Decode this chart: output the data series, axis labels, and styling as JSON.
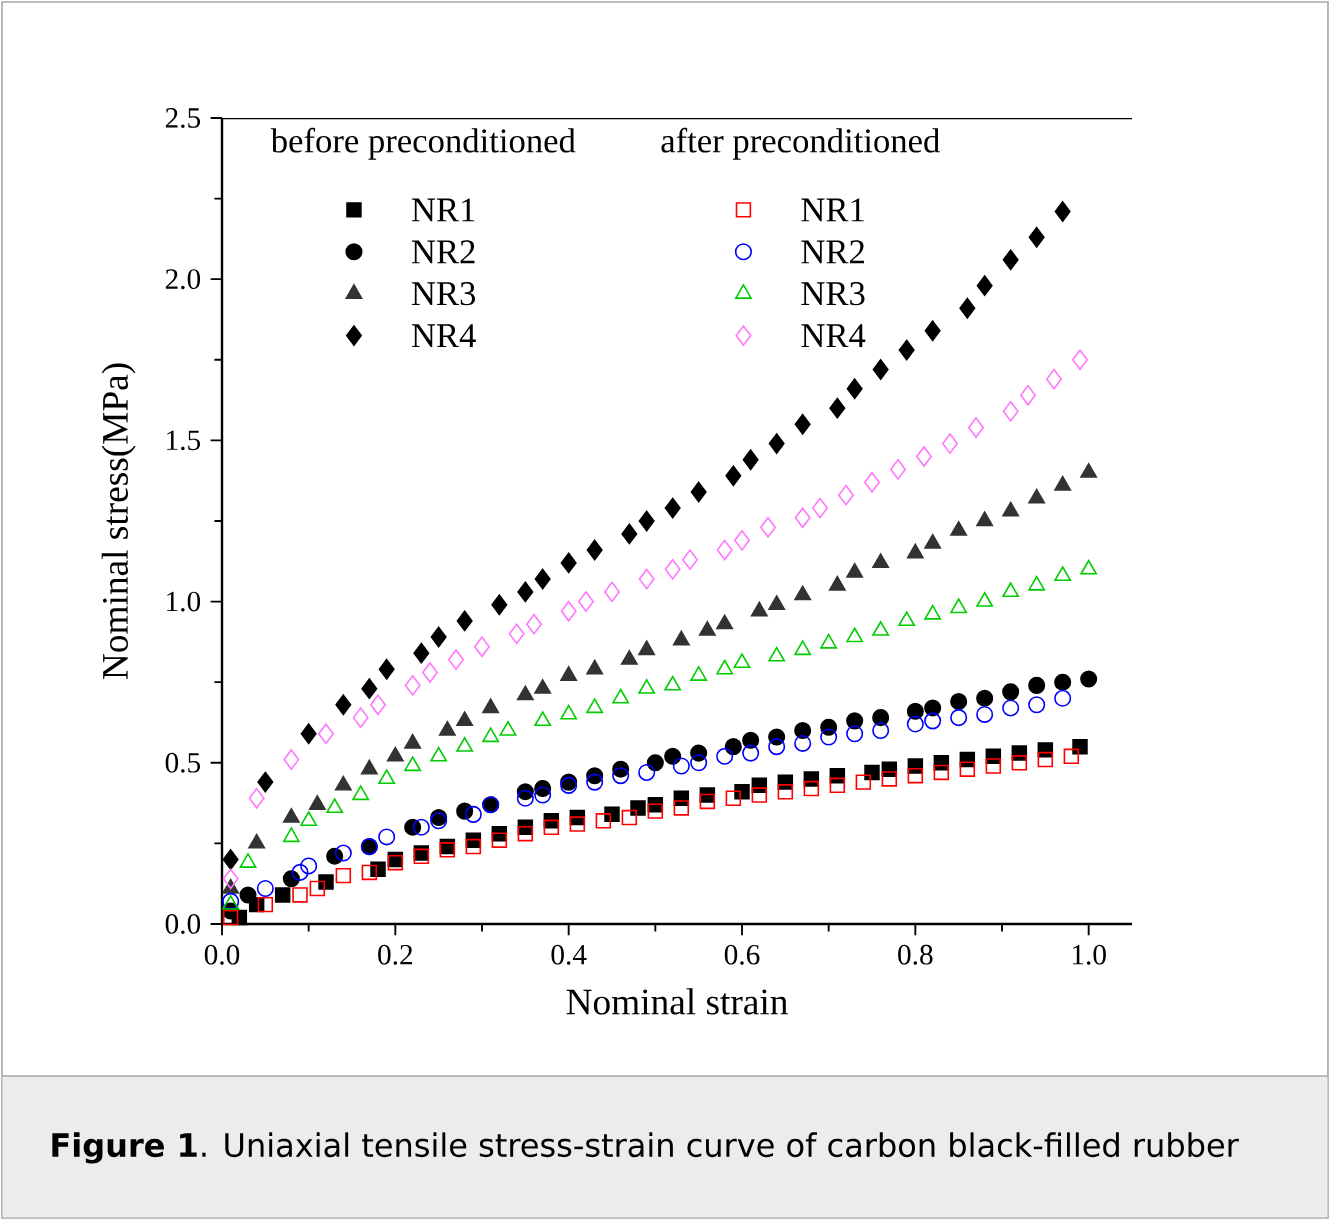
{
  "chart_data": {
    "type": "scatter",
    "xlabel": "Nominal strain",
    "ylabel": "Nominal stress(MPa)",
    "xlim": [
      0,
      1.05
    ],
    "ylim": [
      0,
      2.5
    ],
    "xticks": [
      {
        "value": 0,
        "label": "0.0"
      },
      0.2,
      0.4,
      0.6,
      0.8,
      {
        "value": 1,
        "label": "1.0"
      }
    ],
    "yticks": [
      {
        "value": 0,
        "label": "0.0"
      },
      0.5,
      {
        "value": 1,
        "label": "1.0"
      },
      1.5,
      {
        "value": 2,
        "label": "2.0"
      },
      2.5
    ],
    "legend": "top left",
    "grid": false,
    "annotations": [
      "before preconditioned",
      "after preconditioned",
      "**Figure 1**. Uniaxial tensile stress-strain curve of carbon black-filled rubber"
    ],
    "series": [
      {
        "name": "NR1",
        "color": "#000000",
        "marker": "square",
        "x": [
          0.02,
          0.04,
          0.07,
          0.12,
          0.18,
          0.2,
          0.23,
          0.26,
          0.29,
          0.32,
          0.35,
          0.38,
          0.41,
          0.45,
          0.48,
          0.5,
          0.53,
          0.56,
          0.6,
          0.62,
          0.65,
          0.68,
          0.71,
          0.75,
          0.77,
          0.8,
          0.83,
          0.86,
          0.89,
          0.92,
          0.95,
          0.99
        ],
        "values": [
          0.02,
          0.06,
          0.09,
          0.13,
          0.17,
          0.2,
          0.22,
          0.24,
          0.26,
          0.28,
          0.3,
          0.32,
          0.33,
          0.34,
          0.36,
          0.37,
          0.39,
          0.4,
          0.41,
          0.43,
          0.44,
          0.45,
          0.46,
          0.47,
          0.48,
          0.49,
          0.5,
          0.51,
          0.52,
          0.53,
          0.54,
          0.55
        ]
      },
      {
        "name": "NR2",
        "color": "#000000",
        "marker": "circle",
        "x": [
          0.01,
          0.03,
          0.08,
          0.13,
          0.17,
          0.22,
          0.25,
          0.28,
          0.31,
          0.35,
          0.37,
          0.4,
          0.43,
          0.46,
          0.5,
          0.52,
          0.55,
          0.59,
          0.61,
          0.64,
          0.67,
          0.7,
          0.73,
          0.76,
          0.8,
          0.82,
          0.85,
          0.88,
          0.91,
          0.94,
          0.97,
          1.0
        ],
        "values": [
          0.04,
          0.09,
          0.14,
          0.21,
          0.24,
          0.3,
          0.33,
          0.35,
          0.37,
          0.41,
          0.42,
          0.44,
          0.46,
          0.48,
          0.5,
          0.52,
          0.53,
          0.55,
          0.57,
          0.58,
          0.6,
          0.61,
          0.63,
          0.64,
          0.66,
          0.67,
          0.69,
          0.7,
          0.72,
          0.74,
          0.75,
          0.76
        ]
      },
      {
        "name": "NR3",
        "color": "#333333",
        "marker": "triangle",
        "x": [
          0.01,
          0.04,
          0.08,
          0.11,
          0.14,
          0.17,
          0.2,
          0.22,
          0.26,
          0.28,
          0.31,
          0.35,
          0.37,
          0.4,
          0.43,
          0.47,
          0.49,
          0.53,
          0.56,
          0.58,
          0.62,
          0.64,
          0.67,
          0.71,
          0.73,
          0.76,
          0.8,
          0.82,
          0.85,
          0.88,
          0.91,
          0.94,
          0.97,
          1.0
        ],
        "values": [
          0.11,
          0.25,
          0.33,
          0.37,
          0.43,
          0.48,
          0.52,
          0.56,
          0.6,
          0.63,
          0.67,
          0.71,
          0.73,
          0.77,
          0.79,
          0.82,
          0.85,
          0.88,
          0.91,
          0.93,
          0.97,
          0.99,
          1.02,
          1.05,
          1.09,
          1.12,
          1.15,
          1.18,
          1.22,
          1.25,
          1.28,
          1.32,
          1.36,
          1.4
        ]
      },
      {
        "name": "NR4",
        "color": "#000000",
        "marker": "diamond",
        "x": [
          0.01,
          0.05,
          0.1,
          0.14,
          0.17,
          0.19,
          0.23,
          0.25,
          0.28,
          0.32,
          0.35,
          0.37,
          0.4,
          0.43,
          0.47,
          0.49,
          0.52,
          0.55,
          0.59,
          0.61,
          0.64,
          0.67,
          0.71,
          0.73,
          0.76,
          0.79,
          0.82,
          0.86,
          0.88,
          0.91,
          0.94,
          0.97
        ],
        "values": [
          0.2,
          0.44,
          0.59,
          0.68,
          0.73,
          0.79,
          0.84,
          0.89,
          0.94,
          0.99,
          1.03,
          1.07,
          1.12,
          1.16,
          1.21,
          1.25,
          1.29,
          1.34,
          1.39,
          1.44,
          1.49,
          1.55,
          1.6,
          1.66,
          1.72,
          1.78,
          1.84,
          1.91,
          1.98,
          2.06,
          2.13,
          2.21
        ]
      },
      {
        "name": "NR1",
        "color": "#ff0000",
        "marker": "square",
        "x": [
          0.01,
          0.05,
          0.09,
          0.11,
          0.14,
          0.17,
          0.2,
          0.23,
          0.26,
          0.29,
          0.32,
          0.35,
          0.38,
          0.41,
          0.44,
          0.47,
          0.5,
          0.53,
          0.56,
          0.59,
          0.62,
          0.65,
          0.68,
          0.71,
          0.74,
          0.77,
          0.8,
          0.83,
          0.86,
          0.89,
          0.92,
          0.95,
          0.98
        ],
        "values": [
          0.02,
          0.06,
          0.09,
          0.11,
          0.15,
          0.16,
          0.19,
          0.21,
          0.23,
          0.24,
          0.26,
          0.28,
          0.3,
          0.31,
          0.32,
          0.33,
          0.35,
          0.36,
          0.38,
          0.39,
          0.4,
          0.41,
          0.42,
          0.43,
          0.44,
          0.45,
          0.46,
          0.47,
          0.48,
          0.49,
          0.5,
          0.51,
          0.52
        ]
      },
      {
        "name": "NR2",
        "color": "#0000ff",
        "marker": "circle",
        "x": [
          0.01,
          0.05,
          0.09,
          0.1,
          0.14,
          0.17,
          0.19,
          0.23,
          0.25,
          0.29,
          0.31,
          0.35,
          0.37,
          0.4,
          0.43,
          0.46,
          0.49,
          0.53,
          0.55,
          0.58,
          0.61,
          0.64,
          0.67,
          0.7,
          0.73,
          0.76,
          0.8,
          0.82,
          0.85,
          0.88,
          0.91,
          0.94,
          0.97
        ],
        "values": [
          0.07,
          0.11,
          0.16,
          0.18,
          0.22,
          0.24,
          0.27,
          0.3,
          0.32,
          0.34,
          0.37,
          0.39,
          0.4,
          0.43,
          0.44,
          0.46,
          0.47,
          0.49,
          0.5,
          0.52,
          0.53,
          0.55,
          0.56,
          0.58,
          0.59,
          0.6,
          0.62,
          0.63,
          0.64,
          0.65,
          0.67,
          0.68,
          0.7
        ]
      },
      {
        "name": "NR3",
        "color": "#00cc00",
        "marker": "triangle",
        "x": [
          0.01,
          0.03,
          0.08,
          0.1,
          0.13,
          0.16,
          0.19,
          0.22,
          0.25,
          0.28,
          0.31,
          0.33,
          0.37,
          0.4,
          0.43,
          0.46,
          0.49,
          0.52,
          0.55,
          0.58,
          0.6,
          0.64,
          0.67,
          0.7,
          0.73,
          0.76,
          0.79,
          0.82,
          0.85,
          0.88,
          0.91,
          0.94,
          0.97,
          1.0
        ],
        "values": [
          0.06,
          0.19,
          0.27,
          0.32,
          0.36,
          0.4,
          0.45,
          0.49,
          0.52,
          0.55,
          0.58,
          0.6,
          0.63,
          0.65,
          0.67,
          0.7,
          0.73,
          0.74,
          0.77,
          0.79,
          0.81,
          0.83,
          0.85,
          0.87,
          0.89,
          0.91,
          0.94,
          0.96,
          0.98,
          1.0,
          1.03,
          1.05,
          1.08,
          1.1
        ]
      },
      {
        "name": "NR4",
        "color": "#ff77ff",
        "marker": "diamond",
        "x": [
          0.01,
          0.04,
          0.08,
          0.12,
          0.16,
          0.18,
          0.22,
          0.24,
          0.27,
          0.3,
          0.34,
          0.36,
          0.4,
          0.42,
          0.45,
          0.49,
          0.52,
          0.54,
          0.58,
          0.6,
          0.63,
          0.67,
          0.69,
          0.72,
          0.75,
          0.78,
          0.81,
          0.84,
          0.87,
          0.91,
          0.93,
          0.96,
          0.99
        ],
        "values": [
          0.14,
          0.39,
          0.51,
          0.59,
          0.64,
          0.68,
          0.74,
          0.78,
          0.82,
          0.86,
          0.9,
          0.93,
          0.97,
          1.0,
          1.03,
          1.07,
          1.1,
          1.13,
          1.16,
          1.19,
          1.23,
          1.26,
          1.29,
          1.33,
          1.37,
          1.41,
          1.45,
          1.49,
          1.54,
          1.59,
          1.64,
          1.69,
          1.75
        ]
      }
    ]
  }
}
